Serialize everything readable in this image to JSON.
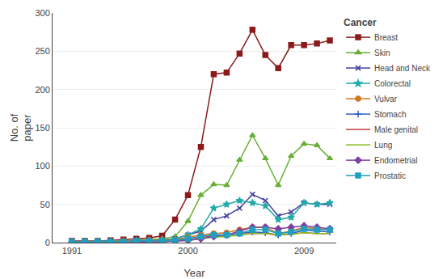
{
  "chart_data": {
    "type": "line",
    "title": "Cancer",
    "xlabel": "Year",
    "ylabel": "No. of\npaper",
    "x": [
      1991,
      1992,
      1993,
      1994,
      1995,
      1996,
      1997,
      1998,
      1999,
      2000,
      2001,
      2002,
      2003,
      2004,
      2005,
      2006,
      2007,
      2008,
      2009,
      2010,
      2011
    ],
    "series": [
      {
        "name": "Breast",
        "color": "#8B1A1A",
        "marker": "square",
        "values": [
          2,
          2,
          2,
          3,
          4,
          5,
          6,
          9,
          30,
          62,
          125,
          220,
          222,
          247,
          278,
          245,
          228,
          258,
          258,
          260,
          264
        ]
      },
      {
        "name": "Skin",
        "color": "#6AAF35",
        "marker": "triangle",
        "values": [
          1,
          1,
          1,
          1,
          2,
          3,
          4,
          5,
          8,
          28,
          62,
          76,
          75,
          108,
          140,
          110,
          75,
          113,
          129,
          127,
          110
        ]
      },
      {
        "name": "Head and Neck",
        "color": "#4040A0",
        "marker": "x",
        "values": [
          1,
          1,
          1,
          1,
          1,
          2,
          2,
          3,
          5,
          10,
          15,
          30,
          35,
          45,
          63,
          55,
          35,
          40,
          52,
          50,
          50
        ]
      },
      {
        "name": "Colorectal",
        "color": "#20AAAA",
        "marker": "star",
        "values": [
          1,
          1,
          2,
          2,
          2,
          3,
          3,
          4,
          5,
          10,
          18,
          45,
          50,
          55,
          52,
          48,
          30,
          33,
          52,
          50,
          52
        ]
      },
      {
        "name": "Vulvar",
        "color": "#D07820",
        "marker": "circle",
        "values": [
          1,
          1,
          1,
          1,
          2,
          2,
          3,
          3,
          4,
          7,
          10,
          12,
          13,
          17,
          20,
          20,
          12,
          15,
          20,
          18,
          18
        ]
      },
      {
        "name": "Stomach",
        "color": "#3060C0",
        "marker": "plus",
        "values": [
          1,
          1,
          1,
          1,
          1,
          2,
          2,
          2,
          3,
          5,
          8,
          10,
          10,
          12,
          14,
          13,
          10,
          12,
          16,
          15,
          14
        ]
      },
      {
        "name": "Male genital",
        "color": "#C04040",
        "marker": "none",
        "values": [
          1,
          1,
          1,
          1,
          1,
          1,
          2,
          2,
          3,
          5,
          7,
          9,
          10,
          11,
          12,
          12,
          10,
          11,
          13,
          12,
          12
        ]
      },
      {
        "name": "Lung",
        "color": "#88BB22",
        "marker": "none",
        "values": [
          0,
          0,
          0,
          0,
          0,
          0,
          1,
          1,
          2,
          3,
          5,
          7,
          8,
          10,
          12,
          12,
          10,
          11,
          13,
          12,
          12
        ]
      },
      {
        "name": "Endometrial",
        "color": "#8040A0",
        "marker": "diamond",
        "values": [
          0,
          0,
          0,
          0,
          0,
          0,
          1,
          1,
          2,
          3,
          5,
          8,
          10,
          15,
          20,
          20,
          18,
          20,
          22,
          20,
          18
        ]
      },
      {
        "name": "Prostatic",
        "color": "#20A0C0",
        "marker": "square",
        "values": [
          1,
          1,
          1,
          1,
          1,
          2,
          2,
          2,
          3,
          5,
          8,
          10,
          10,
          12,
          17,
          17,
          12,
          14,
          18,
          17,
          17
        ]
      }
    ],
    "xlim": [
      1989.5,
      2011.5
    ],
    "xticks": [
      1991,
      2000,
      2009
    ],
    "ylim": [
      0,
      300
    ],
    "yticks": [
      0,
      50,
      100,
      150,
      200,
      250,
      300
    ],
    "grid": "y",
    "legend": "right"
  }
}
